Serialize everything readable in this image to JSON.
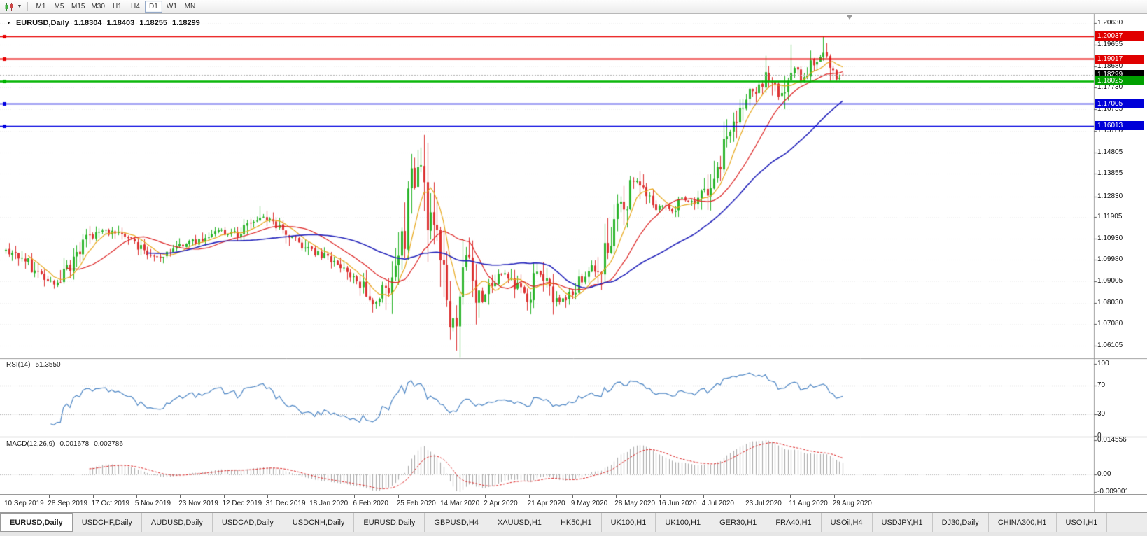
{
  "toolbar": {
    "chart_type_icon": "candlestick-chart-icon",
    "dropdown_icon": "chevron-down-icon",
    "timeframes": [
      "M1",
      "M5",
      "M15",
      "M30",
      "H1",
      "H4",
      "D1",
      "W1",
      "MN"
    ],
    "active_timeframe": "D1"
  },
  "chart_header": {
    "symbol": "EURUSD,Daily",
    "open": "1.18304",
    "high": "1.18403",
    "low": "1.18255",
    "close": "1.18299"
  },
  "price_axis": {
    "labels": [
      "1.20630",
      "1.19655",
      "1.18680",
      "1.17730",
      "1.16755",
      "1.15780",
      "1.14805",
      "1.13855",
      "1.12830",
      "1.11905",
      "1.10930",
      "1.09980",
      "1.09005",
      "1.08030",
      "1.07080",
      "1.06105"
    ]
  },
  "price_tags": [
    {
      "value": "1.20037",
      "price": 1.20037,
      "color": "#e00000",
      "kind": "resistance"
    },
    {
      "value": "1.19017",
      "price": 1.19017,
      "color": "#e00000",
      "kind": "resistance"
    },
    {
      "value": "1.18299",
      "price": 1.18299,
      "color": "#000000",
      "kind": "current"
    },
    {
      "value": "1.18025",
      "price": 1.18025,
      "color": "#00a000",
      "kind": "level"
    },
    {
      "value": "1.17005",
      "price": 1.17005,
      "color": "#0000d8",
      "kind": "support"
    },
    {
      "value": "1.16013",
      "price": 1.16013,
      "color": "#0000d8",
      "kind": "support"
    }
  ],
  "date_axis": {
    "labels": [
      "10 Sep 2019",
      "28 Sep 2019",
      "17 Oct 2019",
      "5 Nov 2019",
      "23 Nov 2019",
      "12 Dec 2019",
      "31 Dec 2019",
      "18 Jan 2020",
      "6 Feb 2020",
      "25 Feb 2020",
      "14 Mar 2020",
      "2 Apr 2020",
      "21 Apr 2020",
      "9 May 2020",
      "28 May 2020",
      "16 Jun 2020",
      "4 Jul 2020",
      "23 Jul 2020",
      "11 Aug 2020",
      "29 Aug 2020"
    ]
  },
  "tabs": {
    "active_index": 0,
    "items": [
      "EURUSD,Daily",
      "USDCHF,Daily",
      "AUDUSD,Daily",
      "USDCAD,Daily",
      "USDCNH,Daily",
      "EURUSD,Daily",
      "GBPUSD,H4",
      "XAUUSD,H1",
      "HK50,H1",
      "UK100,H1",
      "UK100,H1",
      "GER30,H1",
      "FRA40,H1",
      "USOil,H4",
      "USDJPY,H1",
      "DJ30,Daily",
      "CHINA300,H1",
      "USOil,H1"
    ]
  },
  "chart_data": {
    "type": "candlestick",
    "symbol": "EURUSD",
    "timeframe": "Daily",
    "bar_count": 261,
    "last_candle": {
      "open": 1.18304,
      "high": 1.18403,
      "low": 1.18255,
      "close": 1.18299
    },
    "current_price": 1.18299,
    "y_range_top": 1.2105,
    "y_range_bottom": 1.0565,
    "price_path_anchors": [
      [
        0,
        1.104
      ],
      [
        6,
        1.099
      ],
      [
        10,
        1.0935
      ],
      [
        15,
        1.089
      ],
      [
        20,
        1.0985
      ],
      [
        25,
        1.1075
      ],
      [
        29,
        1.114
      ],
      [
        34,
        1.1115
      ],
      [
        40,
        1.107
      ],
      [
        47,
        1.101
      ],
      [
        52,
        1.1045
      ],
      [
        58,
        1.108
      ],
      [
        65,
        1.1125
      ],
      [
        72,
        1.1115
      ],
      [
        79,
        1.1195
      ],
      [
        84,
        1.116
      ],
      [
        90,
        1.109
      ],
      [
        96,
        1.1035
      ],
      [
        101,
        1.1005
      ],
      [
        106,
        1.096
      ],
      [
        110,
        1.0905
      ],
      [
        115,
        1.08
      ],
      [
        118,
        1.0855
      ],
      [
        121,
        1.1025
      ],
      [
        124,
        1.113
      ],
      [
        126,
        1.1285
      ],
      [
        128,
        1.1435
      ],
      [
        130,
        1.133
      ],
      [
        132,
        1.1145
      ],
      [
        134,
        1.107
      ],
      [
        136,
        1.0925
      ],
      [
        138,
        1.0705
      ],
      [
        140,
        1.077
      ],
      [
        142,
        1.1015
      ],
      [
        144,
        1.101
      ],
      [
        146,
        1.0885
      ],
      [
        148,
        1.0805
      ],
      [
        151,
        1.089
      ],
      [
        155,
        1.093
      ],
      [
        158,
        1.088
      ],
      [
        162,
        1.0825
      ],
      [
        165,
        1.0945
      ],
      [
        168,
        1.0895
      ],
      [
        171,
        1.0815
      ],
      [
        175,
        1.0835
      ],
      [
        178,
        1.0905
      ],
      [
        182,
        1.0945
      ],
      [
        185,
        1.0995
      ],
      [
        187,
        1.1095
      ],
      [
        190,
        1.121
      ],
      [
        193,
        1.1285
      ],
      [
        195,
        1.137
      ],
      [
        198,
        1.1295
      ],
      [
        202,
        1.1225
      ],
      [
        205,
        1.1245
      ],
      [
        207,
        1.1215
      ],
      [
        210,
        1.127
      ],
      [
        213,
        1.1255
      ],
      [
        217,
        1.1305
      ],
      [
        220,
        1.139
      ],
      [
        223,
        1.15
      ],
      [
        226,
        1.159
      ],
      [
        229,
        1.1705
      ],
      [
        232,
        1.177
      ],
      [
        234,
        1.176
      ],
      [
        236,
        1.1845
      ],
      [
        238,
        1.1785
      ],
      [
        240,
        1.1735
      ],
      [
        242,
        1.179
      ],
      [
        244,
        1.1855
      ],
      [
        246,
        1.184
      ],
      [
        247,
        1.1805
      ],
      [
        249,
        1.1845
      ],
      [
        252,
        1.19
      ],
      [
        254,
        1.191
      ],
      [
        256,
        1.1845
      ],
      [
        258,
        1.182
      ],
      [
        260,
        1.18299
      ]
    ],
    "spikes": [
      {
        "bar": 79,
        "high": 1.1239
      },
      {
        "bar": 115,
        "low": 1.0778
      },
      {
        "bar": 128,
        "high": 1.1492
      },
      {
        "bar": 138,
        "low": 1.0637
      },
      {
        "bar": 236,
        "high": 1.1916
      },
      {
        "bar": 244,
        "high": 1.1966
      },
      {
        "bar": 254,
        "high": 1.2002
      }
    ],
    "moving_averages": [
      {
        "name": "fast-ma",
        "period": 8,
        "color": "#e8a81c",
        "width": 1.2
      },
      {
        "name": "medium-ma",
        "period": 20,
        "color": "#dd2222",
        "width": 1.2
      },
      {
        "name": "slow-ma",
        "period": 45,
        "color": "#2424bb",
        "width": 1.6
      }
    ],
    "horizontal_lines": [
      {
        "price": 1.20037,
        "color": "#e80000",
        "width": 1.5
      },
      {
        "price": 1.19017,
        "color": "#e80000",
        "width": 2
      },
      {
        "price": 1.18025,
        "color": "#00b400",
        "width": 2.5
      },
      {
        "price": 1.17005,
        "color": "#0000e0",
        "width": 1.5
      },
      {
        "price": 1.16013,
        "color": "#0000e0",
        "width": 1.5
      }
    ],
    "style": {
      "bull": "#2cb52c",
      "bear": "#dd3333",
      "grid": "rgba(0,0,0,0.06)"
    },
    "indicators": {
      "rsi": {
        "label": "RSI(14)",
        "period": 14,
        "value_text": "51.3550",
        "current": 51.355,
        "levels": [
          70,
          30
        ],
        "axis_labels": [
          "100",
          "70",
          "30",
          "0"
        ],
        "axis_values": [
          100,
          70,
          30,
          0
        ],
        "color": "#4d86c5"
      },
      "macd": {
        "label": "MACD(12,26,9)",
        "fast": 12,
        "slow": 26,
        "signal": 9,
        "main_text": "0.001678",
        "signal_text": "0.002786",
        "current_main": 0.001678,
        "current_signal": 0.002786,
        "axis_labels": [
          "0.014556",
          "0.00",
          "-0.009001"
        ],
        "histogram_color": "#a9a9a9",
        "signal_color": "#dd2222"
      }
    }
  }
}
